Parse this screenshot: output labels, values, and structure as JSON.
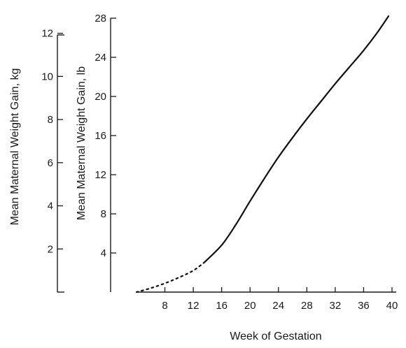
{
  "chart_data": {
    "type": "line",
    "title": "",
    "xlabel": "Week of Gestation",
    "ylabel_left": "Mean Maternal Weight Gain, kg",
    "ylabel_right": "Mean Maternal Weight Gain, lb",
    "xlim": [
      4,
      40
    ],
    "ylim_lb": [
      0,
      28
    ],
    "ylim_kg": [
      0,
      12.7
    ],
    "x_ticks": [
      "8",
      "12",
      "16",
      "20",
      "24",
      "28",
      "32",
      "36",
      "40"
    ],
    "y_ticks_lb": [
      "4",
      "8",
      "12",
      "16",
      "20",
      "24",
      "28"
    ],
    "y_ticks_kg": [
      "2",
      "4",
      "6",
      "8",
      "10",
      "12"
    ],
    "grid": false,
    "series": [
      {
        "style": "dotted",
        "x": [
          4,
          6,
          8,
          10,
          12,
          13.5
        ],
        "y": [
          0,
          0.4,
          0.9,
          1.5,
          2.2,
          3.0
        ]
      },
      {
        "style": "solid",
        "x": [
          13.5,
          16,
          18,
          20,
          22,
          24,
          26,
          28,
          30,
          32,
          34,
          36,
          38,
          39.5
        ],
        "y": [
          3.0,
          4.8,
          6.9,
          9.3,
          11.6,
          13.8,
          15.8,
          17.7,
          19.5,
          21.3,
          23.0,
          24.7,
          26.6,
          28.2
        ]
      }
    ]
  }
}
